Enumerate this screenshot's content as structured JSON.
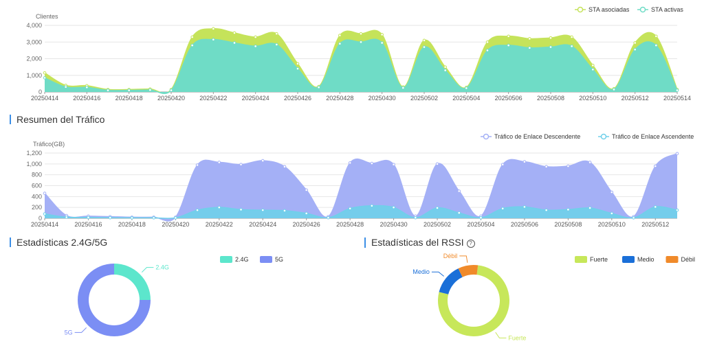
{
  "colors": {
    "associated": "#c5e35a",
    "active": "#6fdcc6",
    "downlink": "#a4b0f6",
    "uplink": "#6fd0ea",
    "band24": "#5ce6cc",
    "band5": "#7b8ef4",
    "strong": "#c7e75a",
    "medium": "#1a6fd8",
    "weak": "#f08a2a"
  },
  "sections": {
    "traffic_title": "Resumen del Tráfico",
    "band_title": "Estadísticas 2.4G/5G",
    "rssi_title": "Estadísticas del RSSI",
    "rssi_help_icon": "help-circle-icon"
  },
  "chart_data": [
    {
      "id": "clients",
      "type": "area",
      "ylabel": "Clientes",
      "ylim": [
        0,
        4000
      ],
      "yticks": [
        0,
        1000,
        2000,
        3000,
        4000
      ],
      "ytick_labels": [
        "0",
        "1,000",
        "2,000",
        "3,000",
        "4,000"
      ],
      "xtick_labels": [
        "20250414",
        "20250416",
        "20250418",
        "20250420",
        "20250422",
        "20250424",
        "20250426",
        "20250428",
        "20250430",
        "20250502",
        "20250504",
        "20250506",
        "20250508",
        "20250510",
        "20250512",
        "20250514"
      ],
      "legend": "top-right",
      "series": [
        {
          "name": "STA asociadas",
          "values": [
            1150,
            400,
            380,
            150,
            150,
            180,
            150,
            3300,
            3800,
            3550,
            3300,
            3500,
            1700,
            330,
            3400,
            3500,
            3450,
            300,
            3100,
            1500,
            280,
            3000,
            3350,
            3200,
            3250,
            3300,
            1600,
            200,
            2950,
            3350,
            150
          ]
        },
        {
          "name": "STA activas",
          "values": [
            850,
            300,
            280,
            100,
            100,
            120,
            100,
            2800,
            3150,
            2950,
            2750,
            2850,
            1400,
            280,
            2900,
            3000,
            2950,
            250,
            2700,
            1300,
            230,
            2500,
            2800,
            2650,
            2700,
            2750,
            1350,
            150,
            2550,
            2800,
            100
          ]
        }
      ]
    },
    {
      "id": "traffic",
      "type": "area",
      "ylabel": "Tráfico(GB)",
      "ylim": [
        0,
        1200
      ],
      "yticks": [
        0,
        200,
        400,
        600,
        800,
        1000,
        1200
      ],
      "ytick_labels": [
        "0",
        "200",
        "400",
        "600",
        "800",
        "1,000",
        "1,200"
      ],
      "xtick_labels": [
        "20250414",
        "20250416",
        "20250418",
        "20250420",
        "20250422",
        "20250424",
        "20250426",
        "20250428",
        "20250430",
        "20250502",
        "20250504",
        "20250506",
        "20250508",
        "20250510",
        "20250512"
      ],
      "legend": "top-right",
      "series": [
        {
          "name": "Tráfico de Enlace Descendente",
          "values": [
            460,
            50,
            40,
            30,
            20,
            20,
            20,
            980,
            1030,
            990,
            1060,
            950,
            520,
            30,
            1020,
            1010,
            990,
            40,
            1000,
            500,
            40,
            990,
            1040,
            950,
            960,
            1030,
            480,
            30,
            960,
            1190
          ]
        },
        {
          "name": "Tráfico de Enlace Ascendente",
          "values": [
            80,
            20,
            15,
            10,
            8,
            8,
            8,
            150,
            200,
            160,
            150,
            140,
            90,
            10,
            180,
            230,
            200,
            10,
            190,
            100,
            10,
            180,
            210,
            150,
            160,
            190,
            90,
            8,
            210,
            150
          ]
        }
      ]
    },
    {
      "id": "bands",
      "type": "pie",
      "labels": [
        "2.4G",
        "5G"
      ],
      "values": [
        25,
        75
      ],
      "legend": "top"
    },
    {
      "id": "rssi",
      "type": "pie",
      "labels": [
        "Fuerte",
        "Medio",
        "Débil"
      ],
      "values": [
        77,
        14,
        9
      ],
      "legend": "top-right"
    }
  ]
}
